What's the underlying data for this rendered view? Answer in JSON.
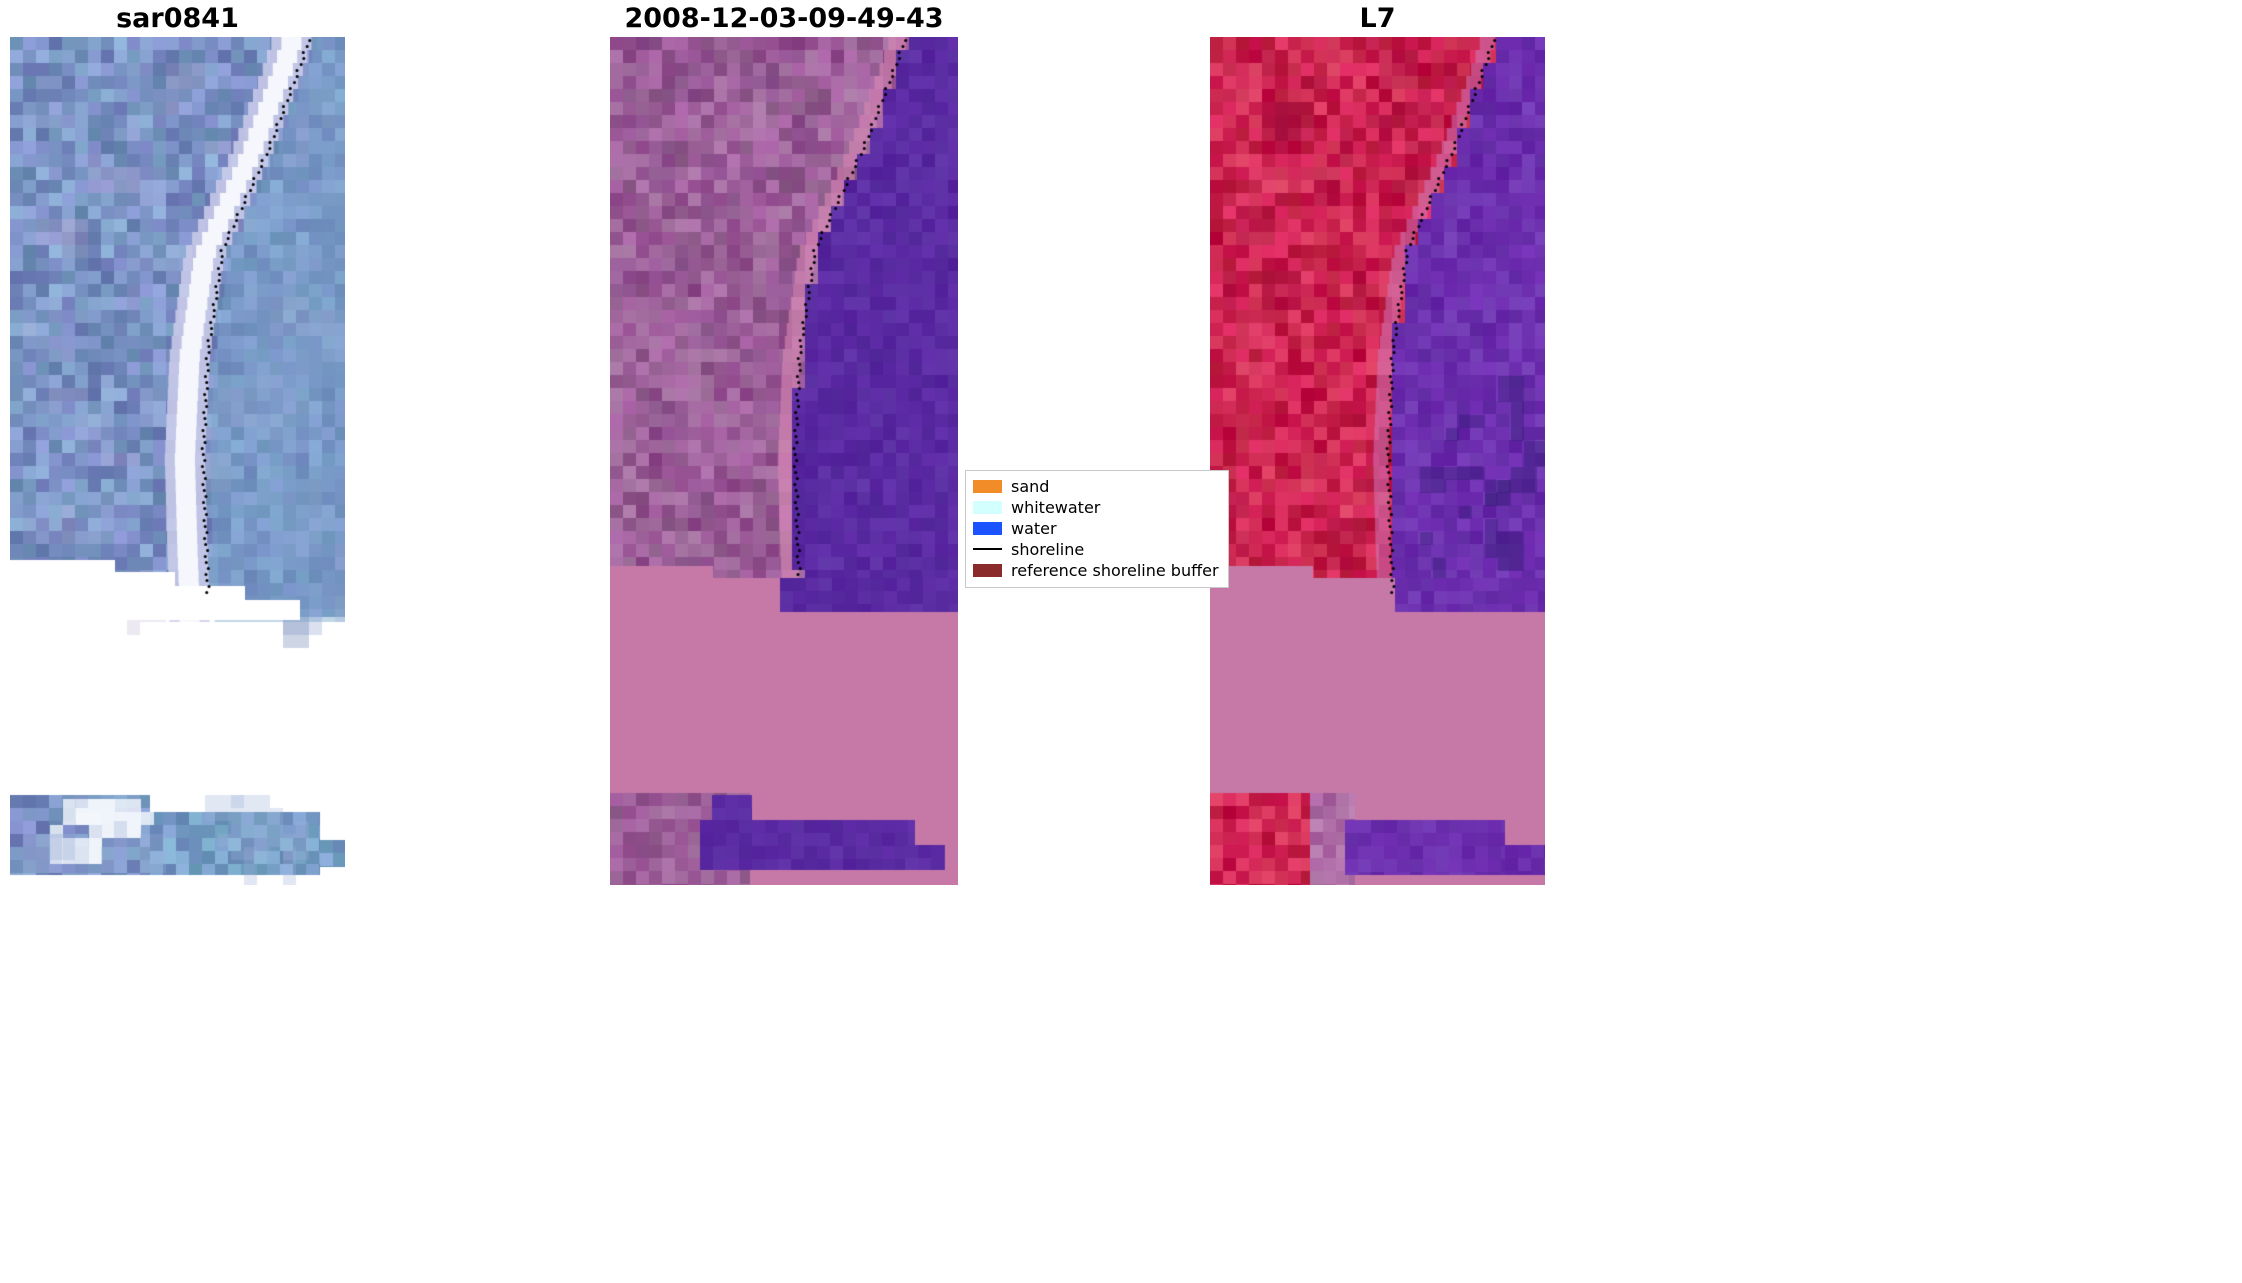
{
  "panels": [
    {
      "id": "sar0841",
      "title": "sar0841",
      "type": "sar-image"
    },
    {
      "id": "classified",
      "title": "2008-12-03-09-49-43",
      "type": "classified-overlay"
    },
    {
      "id": "l7",
      "title": "L7",
      "type": "landsat7-image"
    }
  ],
  "legend": {
    "items": [
      {
        "label": "sand",
        "swatch_color": "#f28c28",
        "type": "patch"
      },
      {
        "label": "whitewater",
        "swatch_color": "#d4ffff",
        "type": "patch"
      },
      {
        "label": "water",
        "swatch_color": "#1a53ff",
        "type": "patch"
      },
      {
        "label": "shoreline",
        "swatch_color": "#000000",
        "type": "line"
      },
      {
        "label": "reference shoreline buffer",
        "swatch_color": "#8b2a2a",
        "type": "patch"
      }
    ]
  },
  "palette": {
    "sar_base": "#7a92c4",
    "sar_water": "#78a0c8",
    "sar_beach_bright": "#f4f7fc",
    "classified_land": "#9a5e96",
    "classified_water": "#5a2ba2",
    "l7_land": "#cc2350",
    "l7_water": "#6c2fae",
    "reference_buffer_fill": "#c679a7",
    "shoreline_dots": "#000000"
  }
}
